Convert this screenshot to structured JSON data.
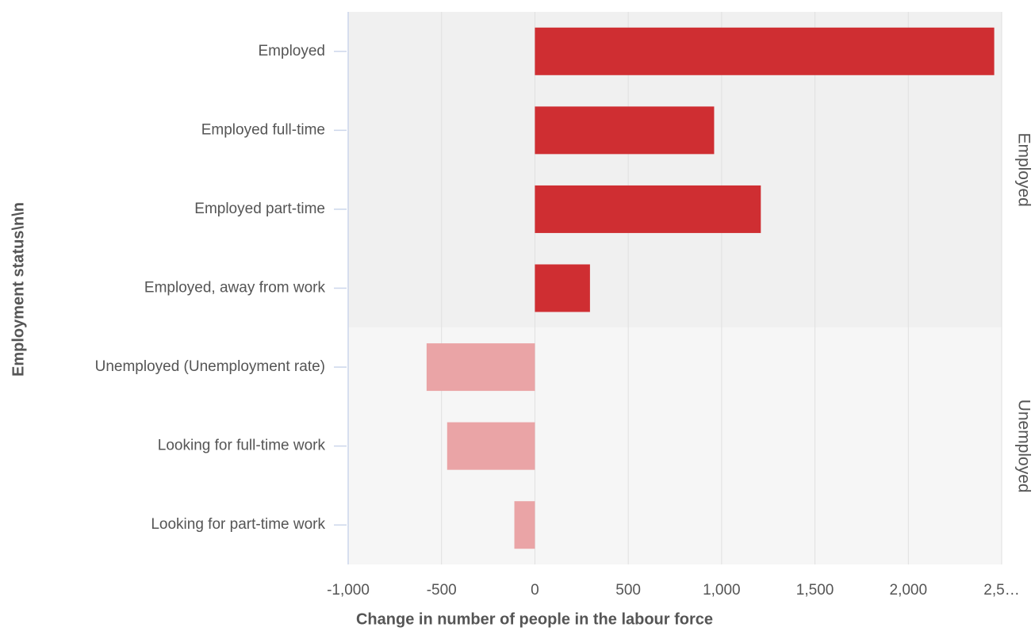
{
  "chart_data": {
    "type": "bar",
    "orientation": "horizontal",
    "x_label": "Change in number of people in the labour force",
    "y_label": "Employment status\\n\\n",
    "xlim": [
      -1000,
      2500
    ],
    "xticks": [
      {
        "value": -1000,
        "label": "-1,000"
      },
      -500,
      0,
      500,
      {
        "value": 1000,
        "label": "1,000"
      },
      {
        "value": 1500,
        "label": "1,500"
      },
      {
        "value": 2000,
        "label": "2,000"
      },
      {
        "value": 2500,
        "label": "2,5…"
      }
    ],
    "grid": true,
    "groups": [
      {
        "name": "Employed",
        "color": "#cf2e32",
        "background": "#f0f0f0",
        "categories": [
          "Employed",
          "Employed full-time",
          "Employed part-time",
          "Employed, away from work"
        ],
        "values": [
          2460,
          960,
          1210,
          295
        ]
      },
      {
        "name": "Unemployed",
        "color": "#eaa4a6",
        "background": "#f6f6f6",
        "categories": [
          "Unemployed (Unemployment rate)",
          "Looking for full-time work",
          "Looking for part-time work"
        ],
        "values": [
          -580,
          -470,
          -110
        ]
      }
    ]
  }
}
